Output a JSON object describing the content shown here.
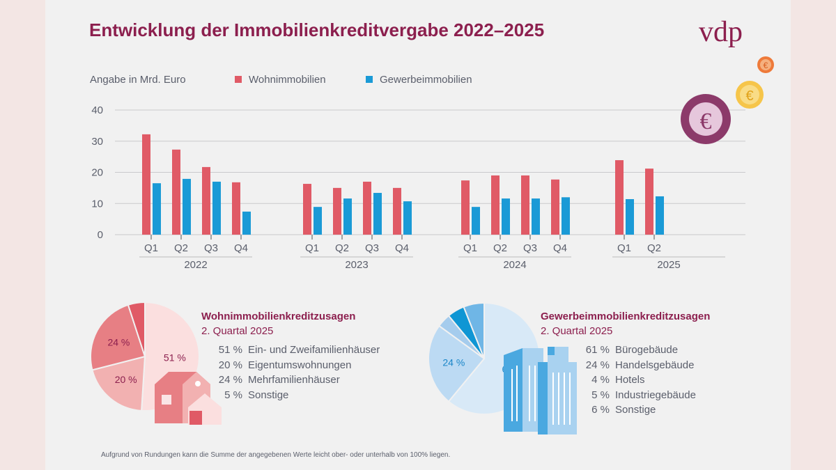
{
  "title": "Entwicklung der Immobilienkreditvergabe 2022–2025",
  "logo": "vdp",
  "coin_symbol": "€",
  "colors": {
    "wohn": "#e05a66",
    "gewerbe": "#1a9ad6",
    "title": "#8c1f4e"
  },
  "chart_data": {
    "type": "bar",
    "ylabel": "Angabe in Mrd. Euro",
    "ylim": [
      0,
      40
    ],
    "yticks": [
      "0",
      "10",
      "20",
      "30",
      "40"
    ],
    "grid": true,
    "legend": [
      "Wohnimmobilien",
      "Gewerbeimmobilien"
    ],
    "years": [
      {
        "year": "2022",
        "quarters": [
          "Q1",
          "Q2",
          "Q3",
          "Q4"
        ],
        "wohn": [
          32.2,
          27.3,
          21.7,
          16.8
        ],
        "gewerbe": [
          16.5,
          17.9,
          17.0,
          7.4
        ]
      },
      {
        "year": "2023",
        "quarters": [
          "Q1",
          "Q2",
          "Q3",
          "Q4"
        ],
        "wohn": [
          16.3,
          15.0,
          17.0,
          15.0
        ],
        "gewerbe": [
          8.9,
          11.6,
          13.4,
          10.7
        ]
      },
      {
        "year": "2024",
        "quarters": [
          "Q1",
          "Q2",
          "Q3",
          "Q4"
        ],
        "wohn": [
          17.4,
          19.0,
          19.0,
          17.7
        ],
        "gewerbe": [
          8.9,
          11.6,
          11.6,
          12.0
        ]
      },
      {
        "year": "2025",
        "quarters": [
          "Q1",
          "Q2"
        ],
        "wohn": [
          23.9,
          21.2
        ],
        "gewerbe": [
          11.4,
          12.3
        ]
      }
    ]
  },
  "pies": [
    {
      "title": "Wohnimmobilienkreditzusagen",
      "subtitle": "2. Quartal 2025",
      "slices": [
        {
          "value": 51,
          "pct": "51 %",
          "label": "Ein- und Zweifamilienhäuser",
          "color": "#fbdfdf",
          "show": true
        },
        {
          "value": 20,
          "pct": "20 %",
          "label": "Eigentumswohnungen",
          "color": "#f2b1b1",
          "show": true
        },
        {
          "value": 24,
          "pct": "24 %",
          "label": "Mehrfamilienhäuser",
          "color": "#e77f84",
          "show": true
        },
        {
          "value": 5,
          "pct": "5 %",
          "label": "Sonstige",
          "color": "#e05a66",
          "show": false
        }
      ]
    },
    {
      "title": "Gewerbeimmobilienkreditzusagen",
      "subtitle": "2. Quartal 2025",
      "slices": [
        {
          "value": 61,
          "pct": "61 %",
          "label": "Bürogebäude",
          "color": "#d8e9f7",
          "show": true
        },
        {
          "value": 24,
          "pct": "24 %",
          "label": "Handelsgebäude",
          "color": "#bcdaf3",
          "show": true
        },
        {
          "value": 4,
          "pct": "4 %",
          "label": "Hotels",
          "color": "#a5cced",
          "show": false
        },
        {
          "value": 5,
          "pct": "5 %",
          "label": "Industriegebäude",
          "color": "#0f96d4",
          "show": false
        },
        {
          "value": 6,
          "pct": "6 %",
          "label": "Sonstige",
          "color": "#6fb6e6",
          "show": false
        }
      ]
    }
  ],
  "footnote": "Aufgrund von Rundungen kann die Summe der angegebenen Werte leicht ober- oder unterhalb von 100% liegen."
}
